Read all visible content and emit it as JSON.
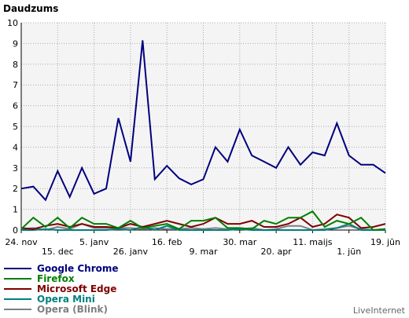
{
  "chart_data": {
    "type": "line",
    "ylabel": "Daudzums",
    "ylim": [
      0,
      10
    ],
    "yticks": [
      0,
      1,
      2,
      3,
      4,
      5,
      6,
      7,
      8,
      9,
      10
    ],
    "grid": true,
    "legend_position": "bottom-left",
    "credit": "LiveInternet",
    "x_tick_labels": [
      {
        "i": 0,
        "label": "24. nov",
        "row": 1
      },
      {
        "i": 3,
        "label": "15. dec",
        "row": 2
      },
      {
        "i": 6,
        "label": "5. janv",
        "row": 1
      },
      {
        "i": 9,
        "label": "26. janv",
        "row": 2
      },
      {
        "i": 12,
        "label": "16. feb",
        "row": 1
      },
      {
        "i": 15,
        "label": "9. mar",
        "row": 2
      },
      {
        "i": 18,
        "label": "30. mar",
        "row": 1
      },
      {
        "i": 21,
        "label": "20. apr",
        "row": 2
      },
      {
        "i": 24,
        "label": "11. maijs",
        "row": 1
      },
      {
        "i": 27,
        "label": "1. jūn",
        "row": 2
      },
      {
        "i": 30,
        "label": "19. jūn",
        "row": 1
      }
    ],
    "series": [
      {
        "name": "Google Chrome",
        "color": "#00007f",
        "values": [
          2.0,
          2.1,
          1.45,
          2.85,
          1.6,
          3.0,
          1.75,
          2.0,
          5.4,
          3.3,
          9.15,
          2.45,
          3.1,
          2.5,
          2.2,
          2.45,
          4.0,
          3.3,
          4.85,
          3.6,
          3.3,
          3.0,
          4.0,
          3.15,
          3.75,
          3.6,
          5.15,
          3.6,
          3.15,
          3.15,
          2.75
        ]
      },
      {
        "name": "Firefox",
        "color": "#007f00",
        "values": [
          0.05,
          0.6,
          0.15,
          0.6,
          0.1,
          0.6,
          0.3,
          0.3,
          0.1,
          0.45,
          0.1,
          0.2,
          0.3,
          0.05,
          0.45,
          0.45,
          0.6,
          0.1,
          0.1,
          0.05,
          0.45,
          0.3,
          0.6,
          0.6,
          0.9,
          0.15,
          0.45,
          0.3,
          0.6,
          0.0,
          0.05
        ]
      },
      {
        "name": "Microsoft Edge",
        "color": "#7f0000",
        "values": [
          0.1,
          0.05,
          0.2,
          0.3,
          0.15,
          0.3,
          0.15,
          0.15,
          0.1,
          0.3,
          0.15,
          0.3,
          0.45,
          0.3,
          0.15,
          0.3,
          0.6,
          0.3,
          0.3,
          0.45,
          0.15,
          0.15,
          0.3,
          0.6,
          0.15,
          0.3,
          0.75,
          0.6,
          0.1,
          0.15,
          0.3
        ]
      },
      {
        "name": "Opera Mini",
        "color": "#007f7f",
        "values": [
          0.0,
          0.0,
          0.05,
          0.0,
          0.0,
          0.0,
          0.0,
          0.0,
          0.05,
          0.0,
          0.15,
          0.0,
          0.2,
          0.0,
          0.0,
          0.0,
          0.0,
          0.0,
          0.05,
          0.0,
          0.0,
          0.0,
          0.0,
          0.0,
          0.0,
          0.0,
          0.1,
          0.3,
          0.0,
          0.0,
          0.0
        ]
      },
      {
        "name": "Opera (Blink)",
        "color": "#7f7f7f",
        "values": [
          0.05,
          0.1,
          0.0,
          0.15,
          0.05,
          0.3,
          0.1,
          0.1,
          0.1,
          0.1,
          0.05,
          0.1,
          0.05,
          0.05,
          0.1,
          0.05,
          0.1,
          0.05,
          0.05,
          0.1,
          0.0,
          0.05,
          0.2,
          0.2,
          0.0,
          0.05,
          0.1,
          0.2,
          0.05,
          0.0,
          0.05
        ]
      }
    ]
  }
}
